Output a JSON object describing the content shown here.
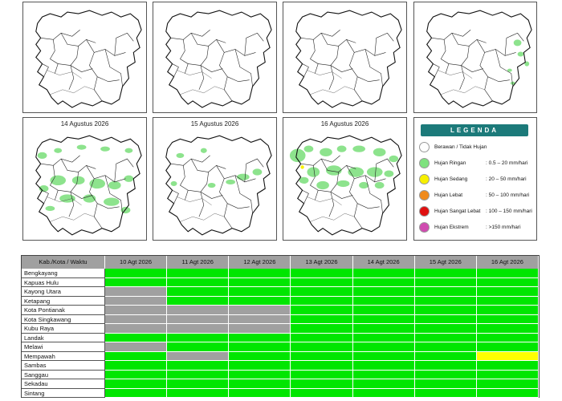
{
  "maps": {
    "bottom_dates": [
      "14 Agustus 2026",
      "15 Agustus 2026",
      "16 Agustus 2026"
    ]
  },
  "legend": {
    "title": "LEGENDA",
    "items": [
      {
        "label": "Berawan / Tidak Hujan",
        "range": "",
        "color": "#ffffff"
      },
      {
        "label": "Hujan Ringan",
        "range": ": 0.5 – 20 mm/hari",
        "color": "#7ee27e"
      },
      {
        "label": "Hujan Sedang",
        "range": ": 20 – 50 mm/hari",
        "color": "#f7f000"
      },
      {
        "label": "Hujan Lebat",
        "range": ": 50 – 100 mm/hari",
        "color": "#f08a1c"
      },
      {
        "label": "Hujan Sangat Lebat",
        "range": ": 100 – 150 mm/hari",
        "color": "#e01010"
      },
      {
        "label": "Hujan Ekstrem",
        "range": ": >150 mm/hari",
        "color": "#d04bb0"
      }
    ]
  },
  "table": {
    "header_label": "Kab./Kota / Waktu",
    "dates": [
      "10 Agt 2026",
      "11 Agt 2026",
      "12 Agt 2026",
      "13 Agt 2026",
      "14 Agt 2026",
      "15 Agt 2026",
      "16 Agt 2026"
    ],
    "colors": {
      "G": "#00e600",
      "X": "#a0a0a0",
      "Y": "#ffff00"
    },
    "rows": [
      {
        "name": "Bengkayang",
        "cells": [
          "G",
          "G",
          "G",
          "G",
          "G",
          "G",
          "G"
        ]
      },
      {
        "name": "Kapuas Hulu",
        "cells": [
          "G",
          "G",
          "G",
          "G",
          "G",
          "G",
          "G"
        ]
      },
      {
        "name": "Kayong Utara",
        "cells": [
          "X",
          "G",
          "G",
          "G",
          "G",
          "G",
          "G"
        ]
      },
      {
        "name": "Ketapang",
        "cells": [
          "X",
          "G",
          "G",
          "G",
          "G",
          "G",
          "G"
        ]
      },
      {
        "name": "Kota Pontianak",
        "cells": [
          "X",
          "X",
          "X",
          "G",
          "G",
          "G",
          "G"
        ]
      },
      {
        "name": "Kota Singkawang",
        "cells": [
          "X",
          "X",
          "X",
          "G",
          "G",
          "G",
          "G"
        ]
      },
      {
        "name": "Kubu Raya",
        "cells": [
          "X",
          "X",
          "X",
          "G",
          "G",
          "G",
          "G"
        ]
      },
      {
        "name": "Landak",
        "cells": [
          "G",
          "G",
          "G",
          "G",
          "G",
          "G",
          "G"
        ]
      },
      {
        "name": "Melawi",
        "cells": [
          "X",
          "G",
          "G",
          "G",
          "G",
          "G",
          "G"
        ]
      },
      {
        "name": "Mempawah",
        "cells": [
          "G",
          "X",
          "G",
          "G",
          "G",
          "G",
          "Y"
        ]
      },
      {
        "name": "Sambas",
        "cells": [
          "G",
          "G",
          "G",
          "G",
          "G",
          "G",
          "G"
        ]
      },
      {
        "name": "Sanggau",
        "cells": [
          "G",
          "G",
          "G",
          "G",
          "G",
          "G",
          "G"
        ]
      },
      {
        "name": "Sekadau",
        "cells": [
          "G",
          "G",
          "G",
          "G",
          "G",
          "G",
          "G"
        ]
      },
      {
        "name": "Sintang",
        "cells": [
          "G",
          "G",
          "G",
          "G",
          "G",
          "G",
          "G"
        ]
      }
    ]
  }
}
